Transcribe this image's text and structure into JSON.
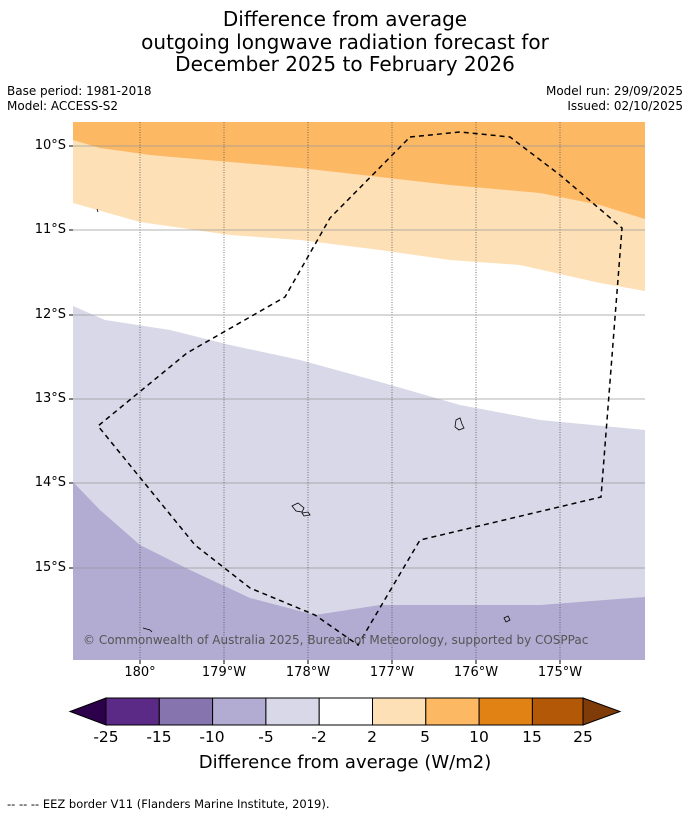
{
  "title": {
    "line1": "Difference from average",
    "line2": "outgoing longwave radiation forecast for",
    "line3": "December 2025 to February 2026"
  },
  "meta": {
    "base_period": "Base period: 1981-2018",
    "model": "Model: ACCESS-S2",
    "model_run": "Model run: 29/09/2025",
    "issued": "Issued: 02/10/2025"
  },
  "map": {
    "lat_labels": [
      "10°S",
      "11°S",
      "12°S",
      "13°S",
      "14°S",
      "15°S"
    ],
    "lon_labels": [
      "180°",
      "179°W",
      "178°W",
      "177°W",
      "176°W",
      "175°W"
    ],
    "copyright": "© Commonwealth of Australia 2025, Bureau of Meteorology, supported by COSPPac"
  },
  "colorbar": {
    "title": "Difference from average (W/m2)",
    "ticks": [
      "-25",
      "-15",
      "-10",
      "-5",
      "-2",
      "2",
      "5",
      "10",
      "15",
      "25"
    ],
    "colors": [
      "#5b2a86",
      "#8574ad",
      "#b2abd2",
      "#d8d8e8",
      "#ffffff",
      "#fee0b6",
      "#fdb863",
      "#e08214",
      "#b35806"
    ],
    "low_extend_color": "#2d004b",
    "high_extend_color": "#7f3b08"
  },
  "footer": {
    "legend": "--  --  -- EEZ border V11 (Flanders Marine Institute, 2019)."
  }
}
